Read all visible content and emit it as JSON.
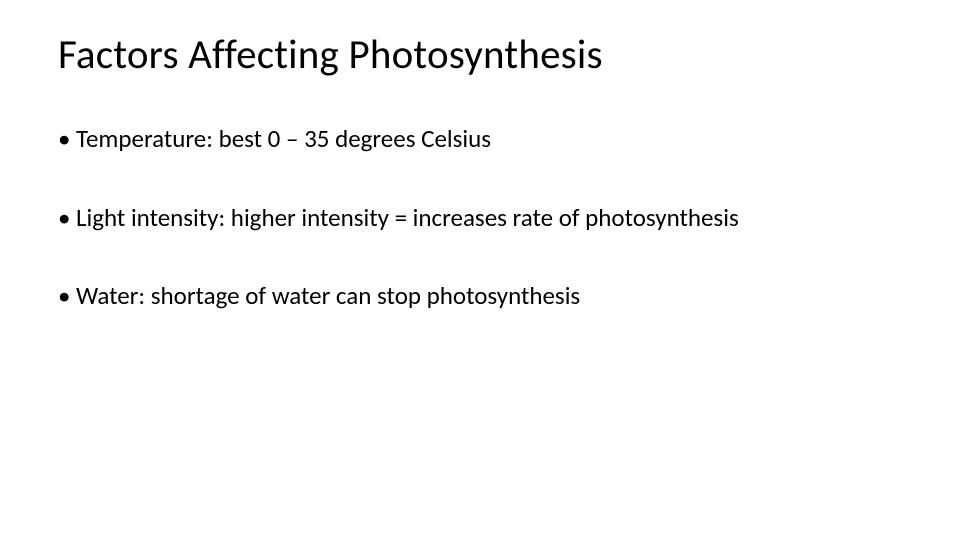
{
  "slide": {
    "title": "Factors Affecting Photosynthesis",
    "bullets": [
      "Temperature:  best 0 – 35 degrees Celsius",
      "Light intensity: higher intensity = increases rate of photosynthesis",
      "Water: shortage of water can stop photosynthesis"
    ],
    "background_color": "#ffffff",
    "text_color": "#000000",
    "title_fontsize": 41,
    "body_fontsize": 25
  }
}
